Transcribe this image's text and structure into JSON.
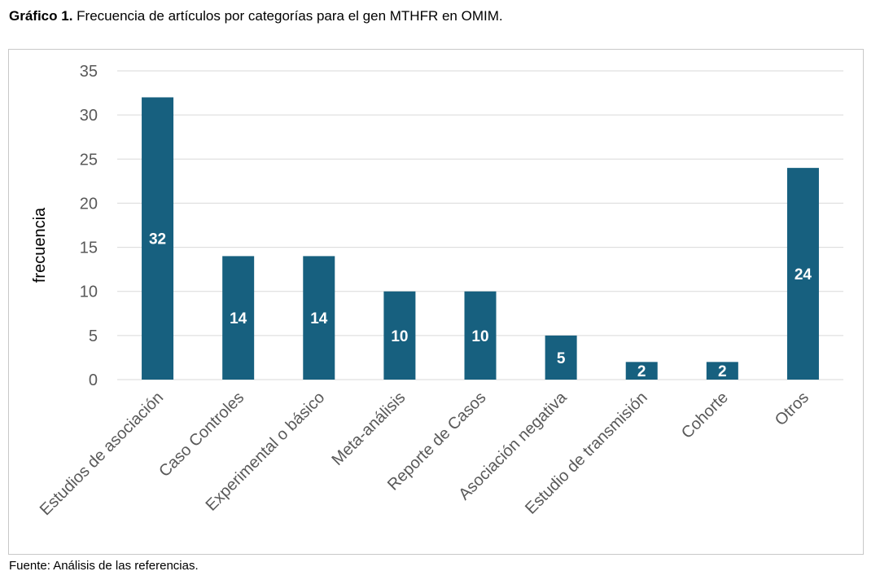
{
  "caption": {
    "label": "Gráfico 1.",
    "text": "Frecuencia de artículos por categorías para el gen MTHFR en OMIM."
  },
  "source": "Fuente: Análisis de las referencias.",
  "colors": {
    "bar": "#17607f",
    "grid": "#d9d9d9",
    "data_label": "#ffffff",
    "axis_text": "#595959"
  },
  "chart_data": {
    "type": "bar",
    "title": "",
    "xlabel": "",
    "ylabel": "frecuencia",
    "categories": [
      "Estudios de asociación",
      "Caso Controles",
      "Experimental o básico",
      "Meta-análisis",
      "Reporte de Casos",
      "Asociación negativa",
      "Estudio de transmisión",
      "Cohorte",
      "Otros"
    ],
    "values": [
      32,
      14,
      14,
      10,
      10,
      5,
      2,
      2,
      24
    ],
    "ylim": [
      0,
      35
    ],
    "yticks": [
      0,
      5,
      10,
      15,
      20,
      25,
      30,
      35
    ],
    "grid": true,
    "legend": "none",
    "data_labels": true
  }
}
